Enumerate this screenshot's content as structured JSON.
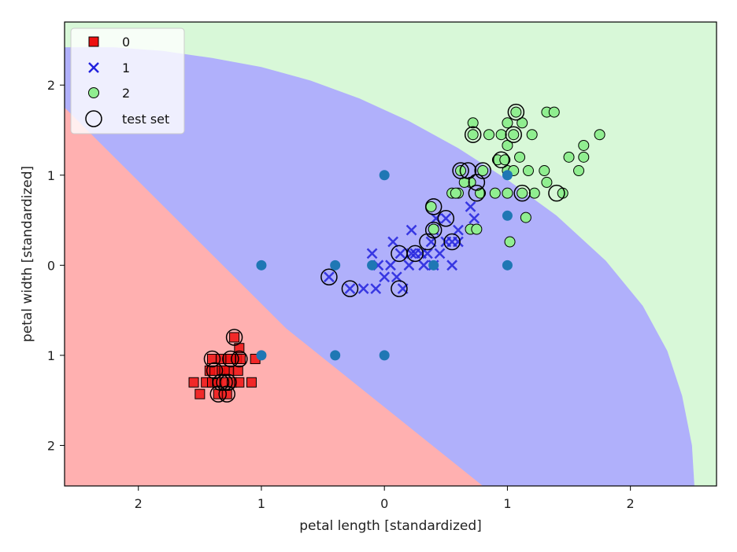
{
  "chart_data": {
    "type": "scatter",
    "title": "",
    "xlabel": "petal length [standardized]",
    "ylabel": "petal width [standardized]",
    "xlim": [
      -2.6,
      2.7
    ],
    "ylim": [
      -2.45,
      2.7
    ],
    "x_ticks": [
      -2,
      -1,
      0,
      1,
      2
    ],
    "y_ticks": [
      -2,
      -1,
      0,
      1,
      2
    ],
    "x_tick_labels": [
      "2",
      "1",
      "0",
      "1",
      "2"
    ],
    "y_tick_labels": [
      "2",
      "1",
      "0",
      "1",
      "2"
    ],
    "grid": false,
    "legend_position": "top-left",
    "legend": [
      "0",
      "1",
      "2",
      "test set"
    ],
    "region_colors": {
      "0": "#ffb0b0",
      "1": "#b0b0fb",
      "2": "#d8f8d8"
    },
    "series": [
      {
        "name": "0",
        "marker": "square",
        "color": "#ee1111",
        "points": [
          [
            -1.55,
            -1.3
          ],
          [
            -1.5,
            -1.43
          ],
          [
            -1.45,
            -1.3
          ],
          [
            -1.42,
            -1.17
          ],
          [
            -1.4,
            -1.04
          ],
          [
            -1.4,
            -1.3
          ],
          [
            -1.38,
            -1.17
          ],
          [
            -1.36,
            -1.3
          ],
          [
            -1.35,
            -1.43
          ],
          [
            -1.33,
            -1.04
          ],
          [
            -1.32,
            -1.17
          ],
          [
            -1.3,
            -1.3
          ],
          [
            -1.28,
            -1.43
          ],
          [
            -1.27,
            -1.04
          ],
          [
            -1.26,
            -1.17
          ],
          [
            -1.24,
            -1.3
          ],
          [
            -1.22,
            -0.8
          ],
          [
            -1.2,
            -1.04
          ],
          [
            -1.19,
            -1.17
          ],
          [
            -1.18,
            -0.92
          ],
          [
            -1.18,
            -1.3
          ],
          [
            -1.17,
            -1.04
          ],
          [
            -1.08,
            -1.3
          ],
          [
            -1.05,
            -1.04
          ],
          [
            -1.25,
            -1.04
          ],
          [
            -1.3,
            -1.17
          ]
        ]
      },
      {
        "name": "1",
        "marker": "x",
        "color": "#2222dd",
        "points": [
          [
            -0.45,
            -0.13
          ],
          [
            -0.28,
            -0.26
          ],
          [
            -0.1,
            0.13
          ],
          [
            -0.07,
            -0.26
          ],
          [
            -0.05,
            0.0
          ],
          [
            0.05,
            0.0
          ],
          [
            0.07,
            0.26
          ],
          [
            0.1,
            -0.13
          ],
          [
            0.13,
            0.13
          ],
          [
            0.15,
            -0.26
          ],
          [
            0.2,
            0.0
          ],
          [
            0.22,
            0.13
          ],
          [
            0.22,
            0.39
          ],
          [
            0.3,
            0.13
          ],
          [
            0.32,
            0.0
          ],
          [
            0.35,
            0.13
          ],
          [
            0.38,
            0.26
          ],
          [
            0.4,
            0.0
          ],
          [
            0.4,
            0.39
          ],
          [
            0.42,
            0.52
          ],
          [
            0.45,
            0.13
          ],
          [
            0.5,
            0.26
          ],
          [
            0.5,
            0.52
          ],
          [
            0.55,
            0.0
          ],
          [
            0.6,
            0.39
          ],
          [
            0.7,
            0.65
          ],
          [
            0.73,
            0.52
          ],
          [
            0.55,
            0.26
          ],
          [
            -0.17,
            -0.26
          ],
          [
            0.0,
            -0.13
          ],
          [
            0.25,
            0.13
          ],
          [
            0.6,
            0.26
          ]
        ]
      },
      {
        "name": "2",
        "marker": "circle",
        "color": "#90ee90",
        "points": [
          [
            0.38,
            0.65
          ],
          [
            0.4,
            0.4
          ],
          [
            0.55,
            0.8
          ],
          [
            0.6,
            0.8
          ],
          [
            0.62,
            1.05
          ],
          [
            0.7,
            0.4
          ],
          [
            0.7,
            0.92
          ],
          [
            0.72,
            1.45
          ],
          [
            0.72,
            1.58
          ],
          [
            0.75,
            0.4
          ],
          [
            0.78,
            0.8
          ],
          [
            0.8,
            1.05
          ],
          [
            0.85,
            1.45
          ],
          [
            0.9,
            0.8
          ],
          [
            0.92,
            1.17
          ],
          [
            0.95,
            1.45
          ],
          [
            0.98,
            1.17
          ],
          [
            1.0,
            0.8
          ],
          [
            1.0,
            1.05
          ],
          [
            1.0,
            1.33
          ],
          [
            1.0,
            1.58
          ],
          [
            1.02,
            0.26
          ],
          [
            1.05,
            1.05
          ],
          [
            1.05,
            1.45
          ],
          [
            1.07,
            1.7
          ],
          [
            1.1,
            1.2
          ],
          [
            1.12,
            0.8
          ],
          [
            1.12,
            1.58
          ],
          [
            1.15,
            0.53
          ],
          [
            1.17,
            1.05
          ],
          [
            1.2,
            1.45
          ],
          [
            1.22,
            0.8
          ],
          [
            1.3,
            1.05
          ],
          [
            1.32,
            0.92
          ],
          [
            1.32,
            1.7
          ],
          [
            1.38,
            1.7
          ],
          [
            1.45,
            0.8
          ],
          [
            1.5,
            1.2
          ],
          [
            1.58,
            1.05
          ],
          [
            1.62,
            1.2
          ],
          [
            1.62,
            1.33
          ],
          [
            1.75,
            1.45
          ],
          [
            0.58,
            0.8
          ],
          [
            0.65,
            0.92
          ]
        ]
      },
      {
        "name": "test set",
        "marker": "ring",
        "color": "#000000",
        "points": [
          [
            -1.4,
            -1.04
          ],
          [
            -1.35,
            -1.43
          ],
          [
            -1.3,
            -1.3
          ],
          [
            -1.28,
            -1.43
          ],
          [
            -1.25,
            -1.04
          ],
          [
            -1.22,
            -0.8
          ],
          [
            -1.18,
            -1.04
          ],
          [
            -1.38,
            -1.17
          ],
          [
            -1.33,
            -1.3
          ],
          [
            -1.27,
            -1.3
          ],
          [
            -0.45,
            -0.13
          ],
          [
            -0.28,
            -0.26
          ],
          [
            0.12,
            -0.26
          ],
          [
            0.12,
            0.13
          ],
          [
            0.25,
            0.13
          ],
          [
            0.35,
            0.26
          ],
          [
            0.4,
            0.39
          ],
          [
            0.4,
            0.65
          ],
          [
            0.5,
            0.52
          ],
          [
            0.55,
            0.26
          ],
          [
            0.62,
            1.05
          ],
          [
            0.72,
            1.45
          ],
          [
            0.75,
            0.92
          ],
          [
            0.75,
            0.8
          ],
          [
            0.8,
            1.05
          ],
          [
            0.95,
            1.17
          ],
          [
            1.05,
            1.45
          ],
          [
            1.07,
            1.7
          ],
          [
            1.12,
            0.8
          ],
          [
            1.4,
            0.8
          ],
          [
            0.68,
            1.05
          ]
        ]
      },
      {
        "name": "",
        "marker": "dot",
        "color": "#1f77b4",
        "points": [
          [
            -1,
            0
          ],
          [
            -1,
            -1
          ],
          [
            -0.4,
            0
          ],
          [
            -0.4,
            -1
          ],
          [
            -0.1,
            0
          ],
          [
            0,
            1
          ],
          [
            0,
            -1
          ],
          [
            0.4,
            0
          ],
          [
            1,
            1
          ],
          [
            1,
            0.55
          ],
          [
            1,
            0
          ]
        ]
      }
    ]
  }
}
